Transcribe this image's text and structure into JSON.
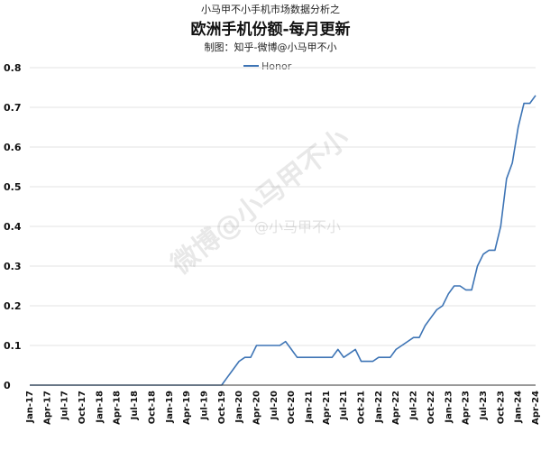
{
  "header": {
    "supertitle": "小马甲不小手机市场数据分析之",
    "title": "欧洲手机份额-每月更新",
    "subtitle": "制图：知乎-微博@小马甲不小"
  },
  "watermark": {
    "main": "微博@小马甲不小",
    "handle": "@小马甲不小"
  },
  "colors": {
    "series": "#3d74b5"
  },
  "chart_data": {
    "type": "line",
    "title": "欧洲手机份额-每月更新",
    "xlabel": "",
    "ylabel": "",
    "ylim": [
      0,
      0.8
    ],
    "yticks": [
      "0",
      "0.1",
      "0.2",
      "0.3",
      "0.4",
      "0.5",
      "0.6",
      "0.7",
      "0.8"
    ],
    "xticks": [
      "Jan-17",
      "Apr-17",
      "Jul-17",
      "Oct-17",
      "Jan-18",
      "Apr-18",
      "Jul-18",
      "Oct-18",
      "Jan-19",
      "Apr-19",
      "Jul-19",
      "Oct-19",
      "Jan-20",
      "Apr-20",
      "Jul-20",
      "Oct-20",
      "Jan-21",
      "Apr-21",
      "Jul-21",
      "Oct-21",
      "Jan-22",
      "Apr-22",
      "Jul-22",
      "Oct-22",
      "Jan-23",
      "Apr-23",
      "Jul-23",
      "Oct-23",
      "Jan-24",
      "Apr-24"
    ],
    "grid": "horizontal",
    "legend_position": "top-center",
    "series": [
      {
        "name": "Honor",
        "points": [
          [
            "Jan-17",
            0
          ],
          [
            "Feb-17",
            0
          ],
          [
            "Mar-17",
            0
          ],
          [
            "Apr-17",
            0
          ],
          [
            "May-17",
            0
          ],
          [
            "Jun-17",
            0
          ],
          [
            "Jul-17",
            0
          ],
          [
            "Aug-17",
            0
          ],
          [
            "Sep-17",
            0
          ],
          [
            "Oct-17",
            0
          ],
          [
            "Nov-17",
            0
          ],
          [
            "Dec-17",
            0
          ],
          [
            "Jan-18",
            0
          ],
          [
            "Feb-18",
            0
          ],
          [
            "Mar-18",
            0
          ],
          [
            "Apr-18",
            0
          ],
          [
            "May-18",
            0
          ],
          [
            "Jun-18",
            0
          ],
          [
            "Jul-18",
            0
          ],
          [
            "Aug-18",
            0
          ],
          [
            "Sep-18",
            0
          ],
          [
            "Oct-18",
            0
          ],
          [
            "Nov-18",
            0
          ],
          [
            "Dec-18",
            0
          ],
          [
            "Jan-19",
            0
          ],
          [
            "Feb-19",
            0
          ],
          [
            "Mar-19",
            0
          ],
          [
            "Apr-19",
            0
          ],
          [
            "May-19",
            0
          ],
          [
            "Jun-19",
            0
          ],
          [
            "Jul-19",
            0
          ],
          [
            "Aug-19",
            0
          ],
          [
            "Sep-19",
            0
          ],
          [
            "Oct-19",
            0
          ],
          [
            "Nov-19",
            0.02
          ],
          [
            "Dec-19",
            0.04
          ],
          [
            "Jan-20",
            0.06
          ],
          [
            "Feb-20",
            0.07
          ],
          [
            "Mar-20",
            0.07
          ],
          [
            "Apr-20",
            0.1
          ],
          [
            "May-20",
            0.1
          ],
          [
            "Jun-20",
            0.1
          ],
          [
            "Jul-20",
            0.1
          ],
          [
            "Aug-20",
            0.1
          ],
          [
            "Sep-20",
            0.11
          ],
          [
            "Oct-20",
            0.09
          ],
          [
            "Nov-20",
            0.07
          ],
          [
            "Dec-20",
            0.07
          ],
          [
            "Jan-21",
            0.07
          ],
          [
            "Feb-21",
            0.07
          ],
          [
            "Mar-21",
            0.07
          ],
          [
            "Apr-21",
            0.07
          ],
          [
            "May-21",
            0.07
          ],
          [
            "Jun-21",
            0.09
          ],
          [
            "Jul-21",
            0.07
          ],
          [
            "Aug-21",
            0.08
          ],
          [
            "Sep-21",
            0.09
          ],
          [
            "Oct-21",
            0.06
          ],
          [
            "Nov-21",
            0.06
          ],
          [
            "Dec-21",
            0.06
          ],
          [
            "Jan-22",
            0.07
          ],
          [
            "Feb-22",
            0.07
          ],
          [
            "Mar-22",
            0.07
          ],
          [
            "Apr-22",
            0.09
          ],
          [
            "May-22",
            0.1
          ],
          [
            "Jun-22",
            0.11
          ],
          [
            "Jul-22",
            0.12
          ],
          [
            "Aug-22",
            0.12
          ],
          [
            "Sep-22",
            0.15
          ],
          [
            "Oct-22",
            0.17
          ],
          [
            "Nov-22",
            0.19
          ],
          [
            "Dec-22",
            0.2
          ],
          [
            "Jan-23",
            0.23
          ],
          [
            "Feb-23",
            0.25
          ],
          [
            "Mar-23",
            0.25
          ],
          [
            "Apr-23",
            0.24
          ],
          [
            "May-23",
            0.24
          ],
          [
            "Jun-23",
            0.3
          ],
          [
            "Jul-23",
            0.33
          ],
          [
            "Aug-23",
            0.34
          ],
          [
            "Sep-23",
            0.34
          ],
          [
            "Oct-23",
            0.4
          ],
          [
            "Nov-23",
            0.52
          ],
          [
            "Dec-23",
            0.56
          ],
          [
            "Jan-24",
            0.65
          ],
          [
            "Feb-24",
            0.71
          ],
          [
            "Mar-24",
            0.71
          ],
          [
            "Apr-24",
            0.73
          ]
        ]
      }
    ]
  }
}
